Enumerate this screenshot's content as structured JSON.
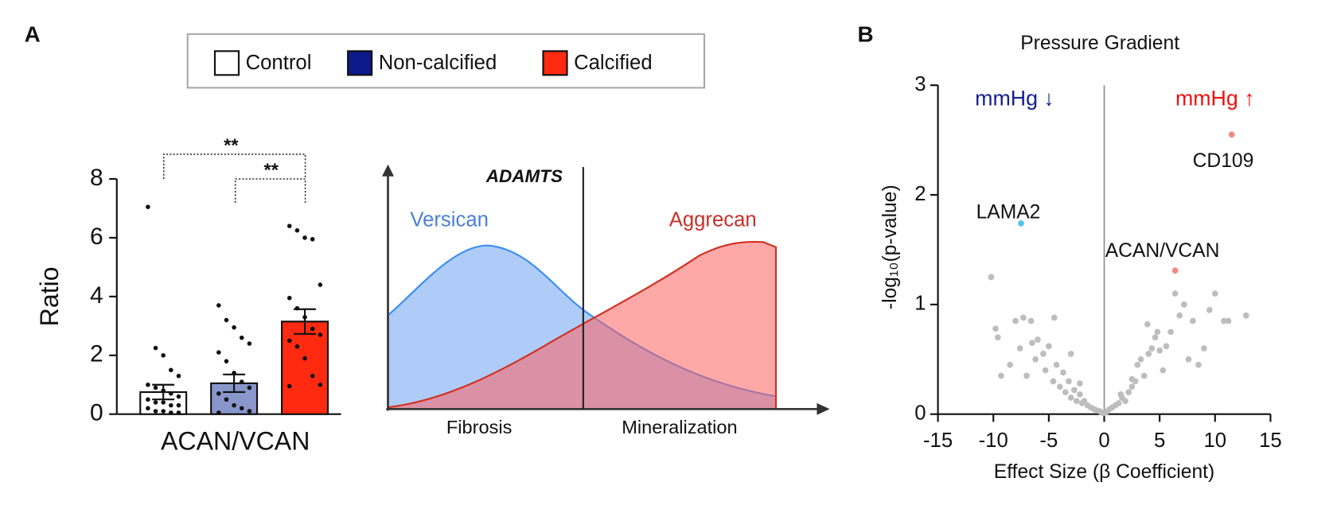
{
  "panels": [
    "A",
    "B"
  ],
  "diagram": {
    "gene": "ADAMTS",
    "curves": [
      "Versican",
      "Aggrecan"
    ],
    "phases": [
      "Fibrosis",
      "Mineralization"
    ]
  },
  "chart_data": [
    {
      "type": "bar",
      "ylabel": "Ratio",
      "categories": [
        "ACAN/VCAN"
      ],
      "ylim": [
        0,
        8
      ],
      "yticks": [
        0,
        2,
        4,
        6,
        8
      ],
      "annotations": [
        "**",
        "**"
      ],
      "series": [
        {
          "name": "Control",
          "color": "#ffffff",
          "legend_color": "#ffffff",
          "values": [
            0.75
          ],
          "errors": [
            0.25
          ],
          "points": [
            7.05,
            2.25,
            2.0,
            1.5,
            1.3,
            1.0,
            0.9,
            0.8,
            0.7,
            0.6,
            0.5,
            0.4,
            0.4,
            0.3,
            0.3,
            0.2,
            0.1,
            0.1,
            0.05,
            0.05
          ]
        },
        {
          "name": "Non-calcified",
          "color": "#8896cc",
          "legend_color": "#0d1a8c",
          "values": [
            1.05
          ],
          "errors": [
            0.3
          ],
          "points": [
            3.7,
            3.2,
            2.95,
            2.6,
            2.4,
            2.1,
            1.8,
            1.4,
            1.1,
            0.9,
            0.7,
            0.5,
            0.3,
            0.2,
            0.1,
            0.05
          ]
        },
        {
          "name": "Calcified",
          "color": "#ff2a10",
          "legend_color": "#ff2a10",
          "values": [
            3.15
          ],
          "errors": [
            0.42
          ],
          "points": [
            6.4,
            6.25,
            6.0,
            5.95,
            4.4,
            3.95,
            3.6,
            3.3,
            2.9,
            2.7,
            2.5,
            2.3,
            1.9,
            1.3,
            1.0,
            0.95
          ]
        }
      ]
    },
    {
      "type": "scatter",
      "title": "Pressure Gradient",
      "xlabel": "Effect Size (β Coefficient)",
      "ylabel": "-log₁₀(p-value)",
      "xlim": [
        -15,
        15
      ],
      "xticks": [
        -15,
        -10,
        -5,
        0,
        5,
        10,
        15
      ],
      "ylim": [
        0,
        3
      ],
      "yticks": [
        0,
        1,
        2,
        3
      ],
      "annotations": [
        {
          "text": "mmHg ↓",
          "color": "#14208f"
        },
        {
          "text": "mmHg ↑",
          "color": "#f01010"
        }
      ],
      "series": [
        {
          "color": "#bdbdbd",
          "x": [
            -10.2,
            -9.8,
            -9.6,
            -9.3,
            -8.5,
            -8.0,
            -7.6,
            -7.3,
            -7.0,
            -6.6,
            -6.2,
            -6.0,
            -5.5,
            -5.3,
            -5.0,
            -4.6,
            -4.3,
            -4.0,
            -3.7,
            -3.5,
            -3.2,
            -3.0,
            -2.7,
            -2.5,
            -2.2,
            -2.0,
            -1.8,
            -1.5,
            -1.2,
            -1.0,
            -0.8,
            -0.5,
            -0.3,
            -0.1,
            0.2,
            0.4,
            0.7,
            1.0,
            1.3,
            1.6,
            1.9,
            2.2,
            2.5,
            2.8,
            3.0,
            3.3,
            3.6,
            4.0,
            4.3,
            4.6,
            5.0,
            5.3,
            5.6,
            6.0,
            6.4,
            6.8,
            7.2,
            7.6,
            8.0,
            8.5,
            9.0,
            9.5,
            10.0,
            10.8,
            11.2,
            12.8,
            -4.5,
            -6.5,
            -3.0,
            2.5,
            4.8,
            3.9,
            -2.2,
            1.5
          ],
          "y": [
            1.25,
            0.78,
            0.7,
            0.35,
            0.45,
            0.85,
            0.6,
            0.88,
            0.35,
            0.85,
            0.5,
            0.68,
            0.55,
            0.4,
            0.62,
            0.3,
            0.45,
            0.25,
            0.38,
            0.2,
            0.3,
            0.15,
            0.22,
            0.12,
            0.18,
            0.1,
            0.12,
            0.08,
            0.06,
            0.05,
            0.04,
            0.03,
            0.02,
            0.01,
            0.02,
            0.04,
            0.06,
            0.08,
            0.1,
            0.15,
            0.12,
            0.2,
            0.25,
            0.3,
            0.45,
            0.5,
            0.35,
            0.55,
            0.6,
            0.7,
            0.58,
            0.4,
            0.62,
            0.75,
            1.1,
            0.9,
            1.0,
            0.5,
            0.85,
            0.45,
            0.6,
            0.95,
            1.1,
            0.85,
            0.85,
            0.9,
            0.88,
            0.65,
            0.55,
            0.32,
            0.75,
            0.82,
            0.28,
            0.18
          ]
        },
        {
          "name": "LAMA2",
          "color": "#55c3f2",
          "x": [
            -7.5
          ],
          "y": [
            1.74
          ]
        },
        {
          "name": "CD109",
          "color": "#f08a80",
          "x": [
            11.5
          ],
          "y": [
            2.55
          ]
        },
        {
          "name": "ACAN/VCAN",
          "color": "#f08a80",
          "x": [
            6.4
          ],
          "y": [
            1.31
          ]
        }
      ]
    }
  ]
}
